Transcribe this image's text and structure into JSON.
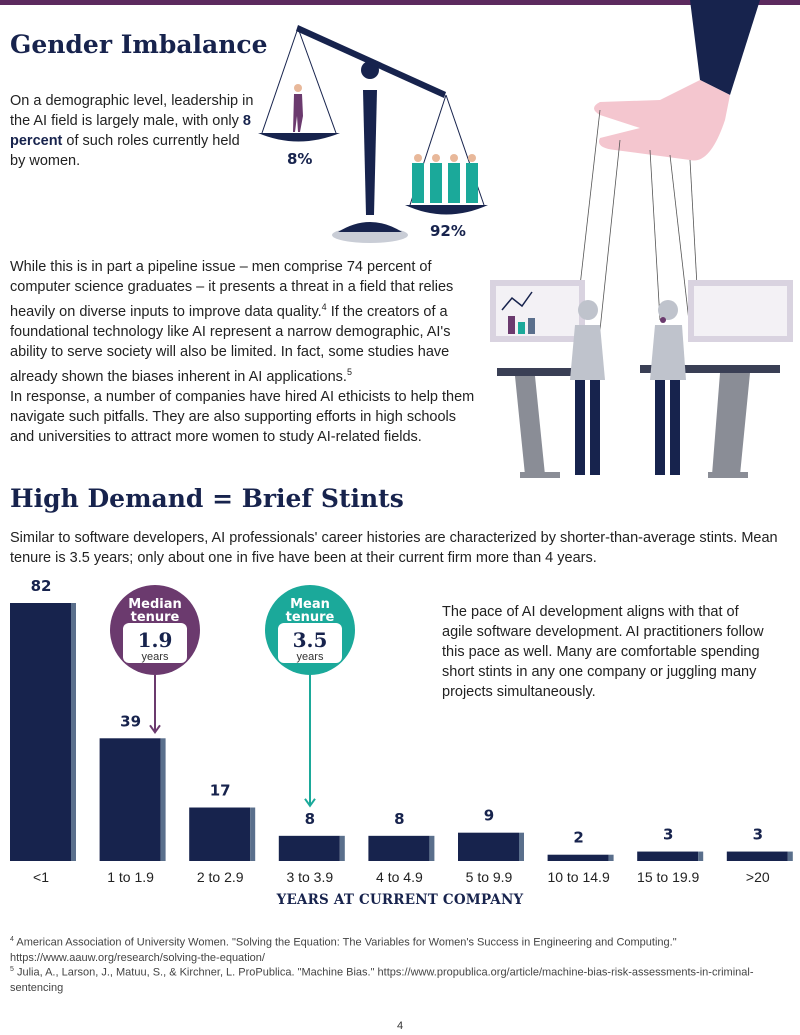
{
  "colors": {
    "navy": "#17234d",
    "purple": "#6b3a6e",
    "teal": "#1ba99a",
    "bar_side": "#5a6f8c"
  },
  "gender": {
    "title": "Gender Imbalance",
    "intro_before": "On a demographic level, leadership in the AI field is largely male, with only ",
    "intro_bold": "8 percent",
    "intro_after": " of such roles currently held by women.",
    "women_pct": "8%",
    "men_pct": "92%",
    "body_p1_a": "While this is in part a pipeline issue – men comprise 74 percent of computer science graduates – it presents a threat in a field that relies heavily on diverse inputs to improve data quality.",
    "body_p1_fn": "4",
    "body_p1_b": " If the creators of a foundational technology like AI represent a narrow demographic, AI's ability to serve society will also be limited. In fact, some studies have already shown the biases inherent in AI applications.",
    "body_p1_fn2": "5",
    "body_p2": "In response, a number of companies have hired AI ethicists to help them navigate such pitfalls. They are also supporting efforts in high schools and universities to attract more women to study AI-related fields."
  },
  "demand": {
    "title": "High Demand = Brief Stints",
    "intro": "Similar to software developers, AI professionals' career histories are characterized by shorter-than-average stints. Mean tenure is 3.5 years; only about one in five have been at their current firm more than 4 years.",
    "pace": "The pace of AI development aligns with that of agile software development. AI practitioners follow this pace as well. Many are comfortable spending short stints in any one company or juggling many projects simultaneously."
  },
  "chart_data": {
    "type": "bar",
    "categories": [
      "<1",
      "1 to 1.9",
      "2 to 2.9",
      "3 to 3.9",
      "4 to 4.9",
      "5 to 9.9",
      "10 to 14.9",
      "15 to 19.9",
      ">20"
    ],
    "values": [
      82,
      39,
      17,
      8,
      8,
      9,
      2,
      3,
      3
    ],
    "xlabel": "YEARS AT CURRENT COMPANY",
    "ylim": [
      0,
      82
    ],
    "grid": false,
    "annotations": [
      {
        "line1": "Median",
        "line2": "tenure",
        "value": "1.9",
        "unit": "years",
        "points_to": "1 to 1.9",
        "color": "#6b3a6e"
      },
      {
        "line1": "Mean",
        "line2": "tenure",
        "value": "3.5",
        "unit": "years",
        "points_to": "3 to 3.9",
        "color": "#1ba99a"
      }
    ]
  },
  "footnotes": {
    "fn4_num": "4",
    "fn4": " American Association of University Women. \"Solving the Equation: The Variables for Women's Success in Engineering and Computing.\" https://www.aauw.org/research/solving-the-equation/",
    "fn5_num": "5",
    "fn5": " Julia, A., Larson, J., Matuu, S., & Kirchner, L. ProPublica. \"Machine Bias.\" https://www.propublica.org/article/machine-bias-risk-assessments-in-criminal-sentencing"
  },
  "page_number": "4"
}
